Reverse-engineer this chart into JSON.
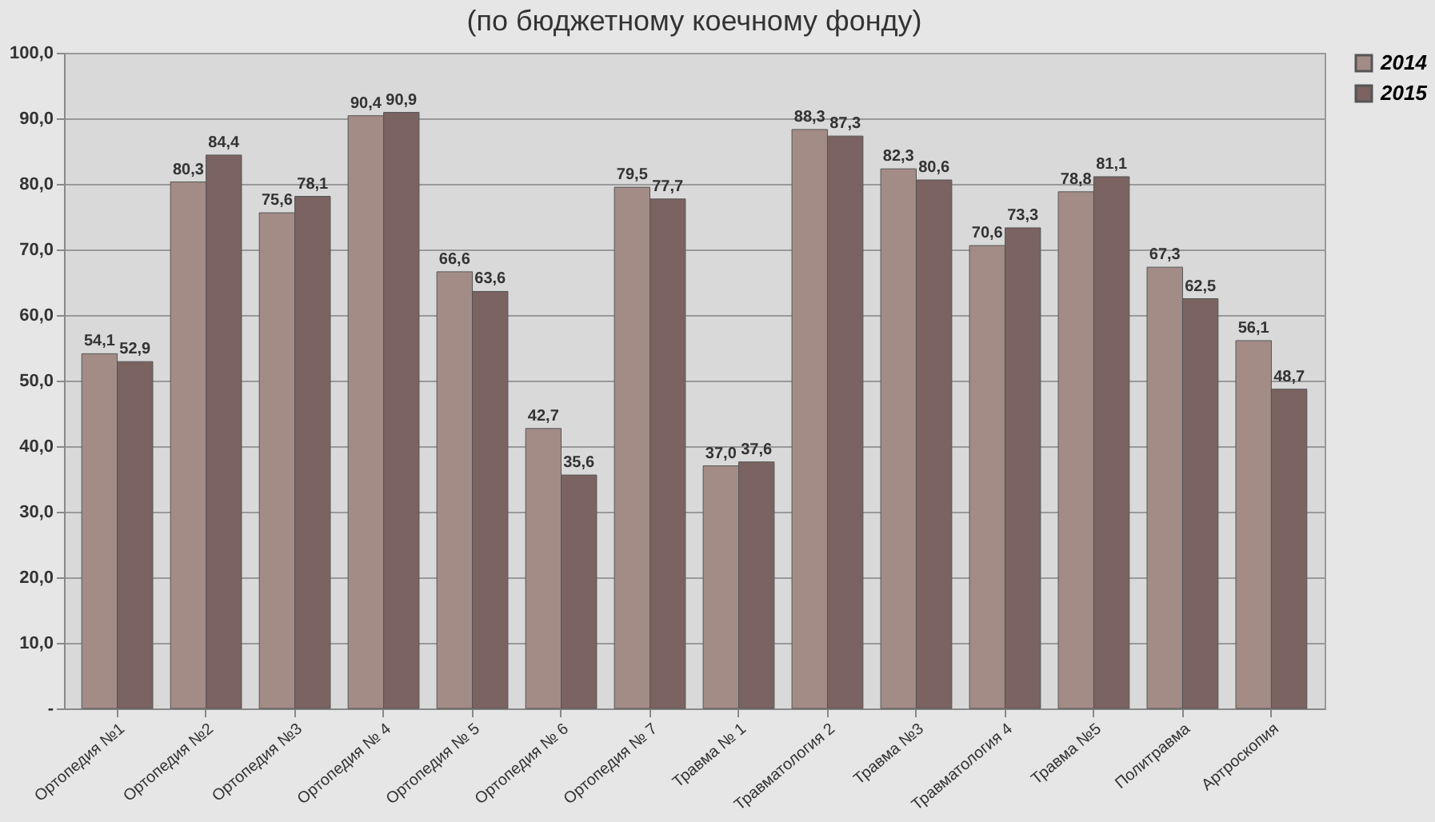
{
  "chart_data": {
    "type": "bar",
    "title": "(по бюджетному коечному фонду)",
    "categories": [
      "Ортопедия №1",
      "Ортопедия №2",
      "Ортопедия №3",
      "Ортопедия № 4",
      "Ортопедия № 5",
      "Ортопедия № 6",
      "Ортопедия № 7",
      "Травма № 1",
      "Травматология 2",
      "Травма №3",
      "Травматология 4",
      "Травма №5",
      "Политравма",
      "Артроскопия"
    ],
    "series": [
      {
        "name": "2014",
        "color": "#a38c86",
        "values": [
          54.1,
          80.3,
          75.6,
          90.4,
          66.6,
          42.7,
          79.5,
          37.0,
          88.3,
          82.3,
          70.6,
          78.8,
          67.3,
          56.1
        ],
        "value_labels": [
          "54,1",
          "80,3",
          "75,6",
          "90,4",
          "66,6",
          "42,7",
          "79,5",
          "37,0",
          "88,3",
          "82,3",
          "70,6",
          "78,8",
          "67,3",
          "56,1"
        ]
      },
      {
        "name": "2015",
        "color": "#7a6360",
        "values": [
          52.9,
          84.4,
          78.1,
          90.9,
          63.6,
          35.6,
          77.7,
          37.6,
          87.3,
          80.6,
          73.3,
          81.1,
          62.5,
          48.7
        ],
        "value_labels": [
          "52,9",
          "84,4",
          "78,1",
          "90,9",
          "63,6",
          "35,6",
          "77,7",
          "37,6",
          "87,3",
          "80,6",
          "73,3",
          "81,1",
          "62,5",
          "48,7"
        ]
      }
    ],
    "ylim": [
      0,
      100
    ],
    "yticks": [
      {
        "value": 0,
        "label": "-"
      },
      {
        "value": 10,
        "label": "10,0"
      },
      {
        "value": 20,
        "label": "20,0"
      },
      {
        "value": 30,
        "label": "30,0"
      },
      {
        "value": 40,
        "label": "40,0"
      },
      {
        "value": 50,
        "label": "50,0"
      },
      {
        "value": 60,
        "label": "60,0"
      },
      {
        "value": 70,
        "label": "70,0"
      },
      {
        "value": 80,
        "label": "80,0"
      },
      {
        "value": 90,
        "label": "90,0"
      },
      {
        "value": 100,
        "label": "100,0"
      }
    ],
    "grid": "y",
    "legend": "right"
  }
}
